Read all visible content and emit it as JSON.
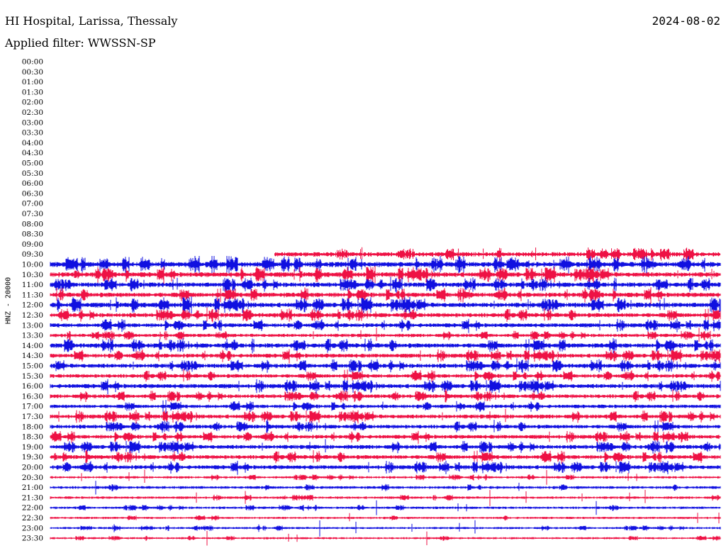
{
  "header": {
    "title": "HI Hospital, Larissa, Thessaly",
    "date": "2024-08-02",
    "filter": "Applied filter: WWSSN-SP",
    "channel": "HNZ - 20000"
  },
  "colors": {
    "trace_a": "#1010e0",
    "trace_b": "#ee1144"
  },
  "chart_data": {
    "type": "line",
    "title": "HI Hospital, Larissa, Thessaly",
    "subtitle": "Applied filter: WWSSN-SP",
    "date": "2024-08-02",
    "ylabel": "HNZ - 20000",
    "xlabel": "",
    "grid": false,
    "tick_labels": [
      "00:00",
      "00:30",
      "01:00",
      "01:30",
      "02:00",
      "02:30",
      "03:00",
      "03:30",
      "04:00",
      "04:30",
      "05:00",
      "05:30",
      "06:00",
      "06:30",
      "07:00",
      "07:30",
      "08:00",
      "08:30",
      "09:00",
      "09:30",
      "10:00",
      "10:30",
      "11:00",
      "11:30",
      "12:00",
      "12:30",
      "13:00",
      "13:30",
      "14:00",
      "14:30",
      "15:00",
      "15:30",
      "16:00",
      "16:30",
      "17:00",
      "17:30",
      "18:00",
      "18:30",
      "19:00",
      "19:30",
      "20:00",
      "20:30",
      "21:00",
      "21:30",
      "22:00",
      "22:30",
      "23:00",
      "23:30"
    ],
    "row_minutes": 30,
    "recording_start_fraction_of_0930_row": 0.335,
    "series": [
      {
        "label": "09:30",
        "activity": 0.55,
        "color": "#ee1144"
      },
      {
        "label": "10:00",
        "activity": 0.7,
        "color": "#1010e0"
      },
      {
        "label": "10:30",
        "activity": 0.65,
        "color": "#ee1144"
      },
      {
        "label": "11:00",
        "activity": 0.6,
        "color": "#1010e0"
      },
      {
        "label": "11:30",
        "activity": 0.6,
        "color": "#ee1144"
      },
      {
        "label": "12:00",
        "activity": 0.65,
        "color": "#1010e0"
      },
      {
        "label": "12:30",
        "activity": 0.55,
        "color": "#ee1144"
      },
      {
        "label": "13:00",
        "activity": 0.5,
        "color": "#1010e0"
      },
      {
        "label": "13:30",
        "activity": 0.35,
        "color": "#ee1144"
      },
      {
        "label": "14:00",
        "activity": 0.6,
        "color": "#1010e0"
      },
      {
        "label": "14:30",
        "activity": 0.5,
        "color": "#ee1144"
      },
      {
        "label": "15:00",
        "activity": 0.55,
        "color": "#1010e0"
      },
      {
        "label": "15:30",
        "activity": 0.45,
        "color": "#ee1144"
      },
      {
        "label": "16:00",
        "activity": 0.55,
        "color": "#1010e0"
      },
      {
        "label": "16:30",
        "activity": 0.45,
        "color": "#ee1144"
      },
      {
        "label": "17:00",
        "activity": 0.4,
        "color": "#1010e0"
      },
      {
        "label": "17:30",
        "activity": 0.5,
        "color": "#ee1144"
      },
      {
        "label": "18:00",
        "activity": 0.45,
        "color": "#1010e0"
      },
      {
        "label": "18:30",
        "activity": 0.45,
        "color": "#ee1144"
      },
      {
        "label": "19:00",
        "activity": 0.5,
        "color": "#1010e0"
      },
      {
        "label": "19:30",
        "activity": 0.5,
        "color": "#ee1144"
      },
      {
        "label": "20:00",
        "activity": 0.5,
        "color": "#1010e0"
      },
      {
        "label": "20:30",
        "activity": 0.15,
        "color": "#ee1144"
      },
      {
        "label": "21:00",
        "activity": 0.22,
        "color": "#1010e0"
      },
      {
        "label": "21:30",
        "activity": 0.15,
        "color": "#ee1144"
      },
      {
        "label": "22:00",
        "activity": 0.15,
        "color": "#1010e0"
      },
      {
        "label": "22:30",
        "activity": 0.1,
        "color": "#ee1144"
      },
      {
        "label": "23:00",
        "activity": 0.1,
        "color": "#1010e0"
      },
      {
        "label": "23:30",
        "activity": 0.08,
        "color": "#ee1144"
      }
    ]
  }
}
